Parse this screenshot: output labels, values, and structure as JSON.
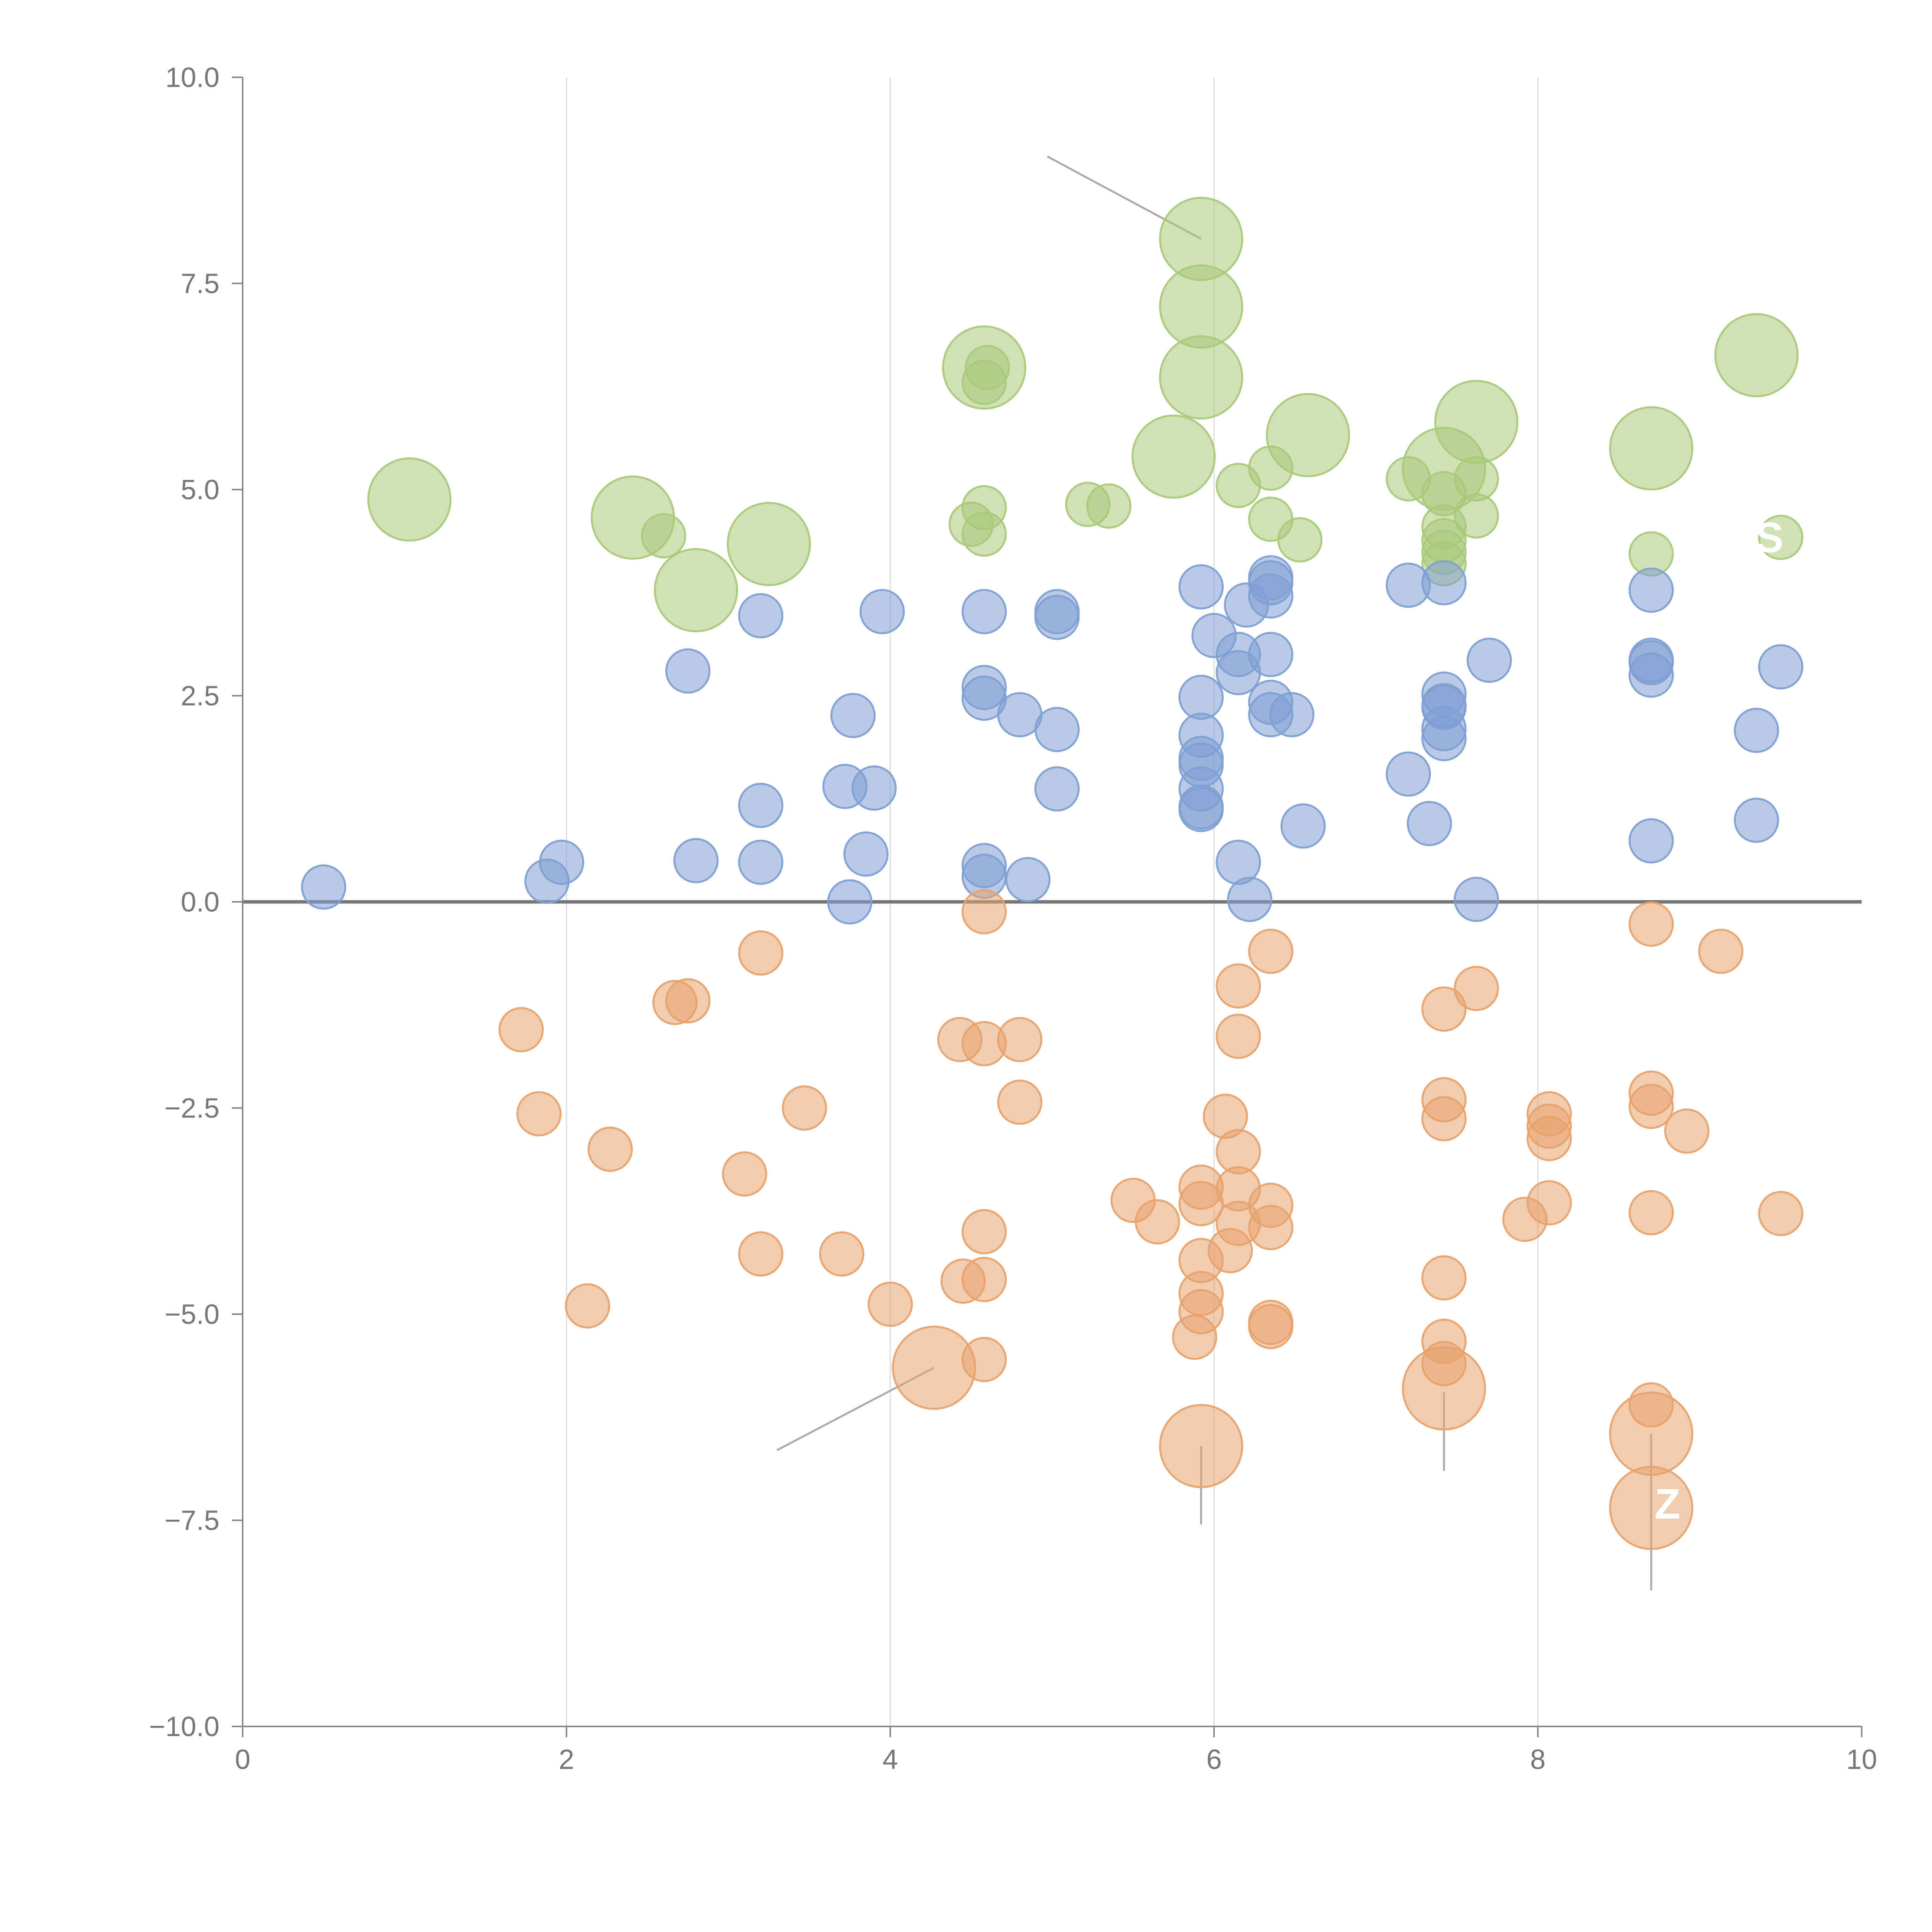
{
  "chart_data": {
    "type": "scatter",
    "title": "",
    "xlabel": "",
    "ylabel": "",
    "xlim": [
      0,
      10
    ],
    "ylim": [
      -10,
      10
    ],
    "grid": "vertical",
    "zero_line": true,
    "x_ticks": [
      "0",
      "2",
      "4",
      "6",
      "8",
      "10"
    ],
    "y_ticks": [
      "−10.0",
      "−7.5",
      "−5.0",
      "−2.5",
      "0.0",
      "2.5",
      "5.0",
      "7.5",
      "10.0"
    ],
    "colors": {
      "green": "#a9c97a",
      "blue": "#7f9fd3",
      "orange": "#e7a26d",
      "axis": "#888888",
      "grid": "#dcdcdc",
      "zero": "#777777",
      "leader": "#aaaaaa"
    },
    "series": [
      {
        "name": "green",
        "color": "#a9c97a",
        "points": [
          [
            1.03,
            4.88,
            1.9
          ],
          [
            2.41,
            4.66,
            1.9
          ],
          [
            2.6,
            4.44,
            1
          ],
          [
            2.8,
            3.78,
            1.9
          ],
          [
            3.25,
            4.34,
            1.9
          ],
          [
            4.5,
            4.58,
            1
          ],
          [
            4.58,
            4.78,
            1
          ],
          [
            4.58,
            4.46,
            1
          ],
          [
            4.58,
            6.48,
            1.9
          ],
          [
            4.58,
            6.3,
            1
          ],
          [
            4.6,
            6.48,
            1
          ],
          [
            5.22,
            4.82,
            1
          ],
          [
            5.35,
            4.8,
            1
          ],
          [
            5.75,
            5.4,
            1.9
          ],
          [
            5.92,
            8.04,
            1.9
          ],
          [
            5.92,
            7.22,
            1.9
          ],
          [
            5.92,
            6.36,
            1.9
          ],
          [
            6.15,
            5.05,
            1
          ],
          [
            6.35,
            5.26,
            1
          ],
          [
            6.35,
            4.64,
            1
          ],
          [
            6.53,
            4.39,
            1
          ],
          [
            6.58,
            5.66,
            1.9
          ],
          [
            7.2,
            5.13,
            1
          ],
          [
            7.42,
            5.25,
            1.9
          ],
          [
            7.42,
            4.95,
            1
          ],
          [
            7.42,
            4.55,
            1
          ],
          [
            7.42,
            4.38,
            1
          ],
          [
            7.42,
            4.24,
            1
          ],
          [
            7.42,
            4.1,
            1
          ],
          [
            7.62,
            5.13,
            1
          ],
          [
            7.62,
            4.68,
            1
          ],
          [
            7.62,
            5.82,
            1.9
          ],
          [
            8.7,
            5.5,
            1.9
          ],
          [
            8.7,
            4.22,
            1
          ],
          [
            9.35,
            6.63,
            1.9
          ],
          [
            9.5,
            4.42,
            1
          ]
        ]
      },
      {
        "name": "blue",
        "color": "#7f9fd3",
        "points": [
          [
            0.5,
            0.18,
            1
          ],
          [
            1.88,
            0.25,
            1
          ],
          [
            1.97,
            0.48,
            1
          ],
          [
            2.75,
            2.8,
            1
          ],
          [
            2.8,
            0.5,
            1
          ],
          [
            3.2,
            3.47,
            1
          ],
          [
            3.2,
            1.17,
            1
          ],
          [
            3.2,
            0.48,
            1
          ],
          [
            3.72,
            1.4,
            1
          ],
          [
            3.75,
            0.0,
            1
          ],
          [
            3.77,
            2.26,
            1
          ],
          [
            3.85,
            0.58,
            1
          ],
          [
            3.9,
            1.38,
            1
          ],
          [
            3.95,
            3.52,
            1
          ],
          [
            4.58,
            3.52,
            1
          ],
          [
            4.58,
            2.6,
            1
          ],
          [
            4.58,
            2.47,
            1
          ],
          [
            4.58,
            0.44,
            1
          ],
          [
            4.58,
            0.31,
            1
          ],
          [
            4.8,
            2.27,
            1
          ],
          [
            4.85,
            0.27,
            1
          ],
          [
            5.03,
            3.52,
            1
          ],
          [
            5.03,
            3.45,
            1
          ],
          [
            5.03,
            2.09,
            1
          ],
          [
            5.03,
            1.37,
            1
          ],
          [
            5.92,
            3.82,
            1
          ],
          [
            5.92,
            2.48,
            1
          ],
          [
            5.92,
            2.02,
            1
          ],
          [
            5.92,
            1.74,
            1
          ],
          [
            5.92,
            1.66,
            1
          ],
          [
            5.92,
            1.37,
            1
          ],
          [
            5.92,
            1.15,
            1
          ],
          [
            5.92,
            1.12,
            1
          ],
          [
            6.0,
            3.23,
            1
          ],
          [
            6.15,
            3.0,
            1
          ],
          [
            6.15,
            2.78,
            1
          ],
          [
            6.15,
            0.48,
            1
          ],
          [
            6.2,
            3.6,
            1
          ],
          [
            6.22,
            0.03,
            1
          ],
          [
            6.35,
            3.93,
            1
          ],
          [
            6.35,
            3.87,
            1
          ],
          [
            6.35,
            3.71,
            1
          ],
          [
            6.35,
            3.0,
            1
          ],
          [
            6.35,
            2.42,
            1
          ],
          [
            6.35,
            2.27,
            1
          ],
          [
            6.48,
            2.27,
            1
          ],
          [
            6.55,
            0.92,
            1
          ],
          [
            7.2,
            3.84,
            1
          ],
          [
            7.2,
            1.55,
            1
          ],
          [
            7.33,
            0.95,
            1
          ],
          [
            7.42,
            3.87,
            1
          ],
          [
            7.42,
            2.52,
            1
          ],
          [
            7.42,
            2.38,
            1
          ],
          [
            7.42,
            2.36,
            1
          ],
          [
            7.42,
            2.1,
            1
          ],
          [
            7.42,
            1.98,
            1
          ],
          [
            7.62,
            0.03,
            1
          ],
          [
            7.7,
            2.93,
            1
          ],
          [
            8.7,
            3.78,
            1
          ],
          [
            8.7,
            2.93,
            1
          ],
          [
            8.7,
            2.9,
            1
          ],
          [
            8.7,
            2.75,
            1
          ],
          [
            8.7,
            0.74,
            1
          ],
          [
            9.35,
            2.08,
            1
          ],
          [
            9.35,
            0.99,
            1
          ],
          [
            9.5,
            2.85,
            1
          ]
        ]
      },
      {
        "name": "orange",
        "color": "#e7a26d",
        "points": [
          [
            1.72,
            -1.55,
            1
          ],
          [
            1.83,
            -2.57,
            1
          ],
          [
            2.13,
            -4.9,
            1
          ],
          [
            2.27,
            -3.0,
            1
          ],
          [
            2.67,
            -1.22,
            1
          ],
          [
            2.75,
            -1.2,
            1
          ],
          [
            3.1,
            -3.3,
            1
          ],
          [
            3.2,
            -0.62,
            1
          ],
          [
            3.2,
            -4.27,
            1
          ],
          [
            3.47,
            -2.5,
            1
          ],
          [
            3.7,
            -4.27,
            1
          ],
          [
            4.0,
            -4.88,
            1
          ],
          [
            4.27,
            -5.65,
            1.9
          ],
          [
            4.43,
            -1.67,
            1
          ],
          [
            4.45,
            -4.6,
            1
          ],
          [
            4.58,
            -0.12,
            1
          ],
          [
            4.58,
            -1.72,
            1
          ],
          [
            4.58,
            -4.0,
            1
          ],
          [
            4.58,
            -4.58,
            1
          ],
          [
            4.58,
            -5.55,
            1
          ],
          [
            4.8,
            -1.67,
            1
          ],
          [
            4.8,
            -2.43,
            1
          ],
          [
            5.5,
            -3.62,
            1
          ],
          [
            5.65,
            -3.88,
            1
          ],
          [
            5.88,
            -5.28,
            1
          ],
          [
            5.92,
            -3.46,
            1
          ],
          [
            5.92,
            -3.66,
            1
          ],
          [
            5.92,
            -4.35,
            1
          ],
          [
            5.92,
            -4.75,
            1
          ],
          [
            5.92,
            -4.97,
            1
          ],
          [
            5.92,
            -6.6,
            1.9
          ],
          [
            6.07,
            -2.6,
            1
          ],
          [
            6.1,
            -4.23,
            1
          ],
          [
            6.15,
            -1.02,
            1
          ],
          [
            6.15,
            -1.63,
            1
          ],
          [
            6.15,
            -3.03,
            1
          ],
          [
            6.15,
            -3.48,
            1
          ],
          [
            6.15,
            -3.9,
            1
          ],
          [
            6.35,
            -0.6,
            1
          ],
          [
            6.35,
            -3.68,
            1
          ],
          [
            6.35,
            -3.95,
            1
          ],
          [
            6.35,
            -5.1,
            1
          ],
          [
            6.35,
            -5.15,
            1
          ],
          [
            7.42,
            -1.3,
            1
          ],
          [
            7.42,
            -2.4,
            1
          ],
          [
            7.42,
            -2.63,
            1
          ],
          [
            7.42,
            -4.56,
            1
          ],
          [
            7.42,
            -5.33,
            1
          ],
          [
            7.42,
            -5.6,
            1
          ],
          [
            7.42,
            -5.9,
            1.9
          ],
          [
            7.62,
            -1.05,
            1
          ],
          [
            7.92,
            -3.85,
            1
          ],
          [
            8.07,
            -2.57,
            1
          ],
          [
            8.07,
            -2.72,
            1
          ],
          [
            8.07,
            -2.87,
            1
          ],
          [
            8.07,
            -3.65,
            1
          ],
          [
            8.7,
            -0.27,
            1
          ],
          [
            8.7,
            -2.32,
            1
          ],
          [
            8.7,
            -2.48,
            1
          ],
          [
            8.7,
            -3.77,
            1
          ],
          [
            8.7,
            -6.1,
            1
          ],
          [
            8.7,
            -6.45,
            1.9
          ],
          [
            8.7,
            -7.35,
            1.9
          ],
          [
            8.92,
            -2.78,
            1
          ],
          [
            9.13,
            -0.6,
            1
          ],
          [
            9.5,
            -3.78,
            1
          ]
        ]
      }
    ],
    "leader_lines": [
      [
        4.97,
        9.04,
        5.92,
        8.04
      ],
      [
        4.27,
        -5.65,
        3.3,
        -6.65
      ],
      [
        5.92,
        -6.6,
        5.92,
        -7.55
      ],
      [
        7.42,
        -5.95,
        7.42,
        -6.9
      ],
      [
        8.7,
        -6.45,
        8.7,
        -8.35
      ]
    ],
    "point_labels": [
      {
        "text": "Z",
        "x": 8.8,
        "y": -7.3
      },
      {
        "text": "S",
        "x": 9.43,
        "y": 4.42
      }
    ]
  }
}
